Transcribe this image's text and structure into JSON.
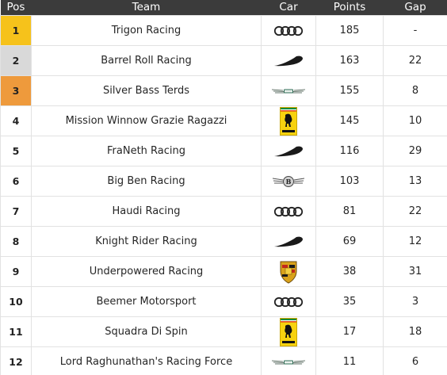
{
  "headers": {
    "pos": "Pos",
    "team": "Team",
    "car": "Car",
    "points": "Points",
    "gap": "Gap"
  },
  "colors": {
    "header_bg": "#3b3b3b",
    "gold": "#f6c21b",
    "silver": "#d9d9d9",
    "bronze": "#ee9a3c"
  },
  "rows": [
    {
      "pos": "1",
      "team": "Trigon Racing",
      "car": "audi-logo",
      "points": "185",
      "gap": "-"
    },
    {
      "pos": "2",
      "team": "Barrel Roll Racing",
      "car": "mclaren-logo",
      "points": "163",
      "gap": "22"
    },
    {
      "pos": "3",
      "team": "Silver Bass Terds",
      "car": "aston-martin-logo",
      "points": "155",
      "gap": "8"
    },
    {
      "pos": "4",
      "team": "Mission Winnow Grazie Ragazzi",
      "car": "ferrari-logo",
      "points": "145",
      "gap": "10"
    },
    {
      "pos": "5",
      "team": "FraNeth Racing",
      "car": "mclaren-logo",
      "points": "116",
      "gap": "29"
    },
    {
      "pos": "6",
      "team": "Big Ben Racing",
      "car": "bentley-logo",
      "points": "103",
      "gap": "13"
    },
    {
      "pos": "7",
      "team": "Haudi Racing",
      "car": "audi-logo",
      "points": "81",
      "gap": "22"
    },
    {
      "pos": "8",
      "team": "Knight Rider Racing",
      "car": "mclaren-logo",
      "points": "69",
      "gap": "12"
    },
    {
      "pos": "9",
      "team": "Underpowered Racing",
      "car": "porsche-logo",
      "points": "38",
      "gap": "31"
    },
    {
      "pos": "10",
      "team": "Beemer Motorsport",
      "car": "audi-logo",
      "points": "35",
      "gap": "3"
    },
    {
      "pos": "11",
      "team": "Squadra Di Spin",
      "car": "ferrari-logo",
      "points": "17",
      "gap": "18"
    },
    {
      "pos": "12",
      "team": "Lord Raghunathan's Racing Force",
      "car": "aston-martin-logo",
      "points": "11",
      "gap": "6"
    }
  ]
}
